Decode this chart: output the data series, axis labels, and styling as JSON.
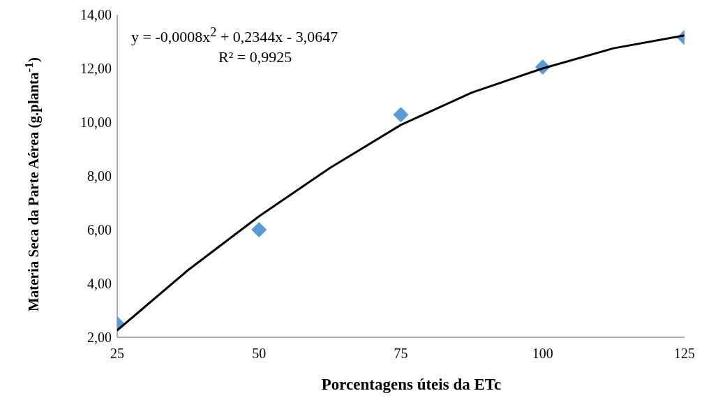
{
  "chart_data": {
    "type": "scatter",
    "xlabel": "Porcentagens úteis da ETc",
    "ylabel": "Materia Seca da Parte Aérea (g.planta$^{-1}$)",
    "x": [
      25,
      50,
      75,
      100,
      125
    ],
    "series": [
      {
        "type": "scatter",
        "color": "#5b9bd5",
        "marker": "diamond",
        "values": [
          2.5,
          6.0,
          10.28,
          12.05,
          13.15
        ]
      },
      {
        "type": "line",
        "color": "#000000",
        "marker": "none",
        "x": [
          25,
          37.5,
          50,
          62.5,
          75,
          87.5,
          100,
          112.5,
          125
        ],
        "values": [
          2.26,
          4.5,
          6.5,
          8.3,
          9.9,
          11.1,
          12.0,
          12.75,
          13.23
        ]
      }
    ],
    "xlim": [
      25,
      125
    ],
    "xticks": [
      25,
      50,
      75,
      100,
      125
    ],
    "ylim": [
      2,
      14
    ],
    "yticks": [
      {
        "value": 2,
        "label": "2,00"
      },
      {
        "value": 4,
        "label": "4,00"
      },
      {
        "value": 6,
        "label": "6,00"
      },
      {
        "value": 8,
        "label": "8,00"
      },
      {
        "value": 10,
        "label": "10,00"
      },
      {
        "value": 12,
        "label": "12,00"
      },
      {
        "value": 14,
        "label": "14,00"
      }
    ],
    "grid": false,
    "legend": false,
    "annotations": [
      "y = -0,0008x$^{2}$ + 0,2344x - 3,0647",
      "R² = 0,9925"
    ]
  }
}
